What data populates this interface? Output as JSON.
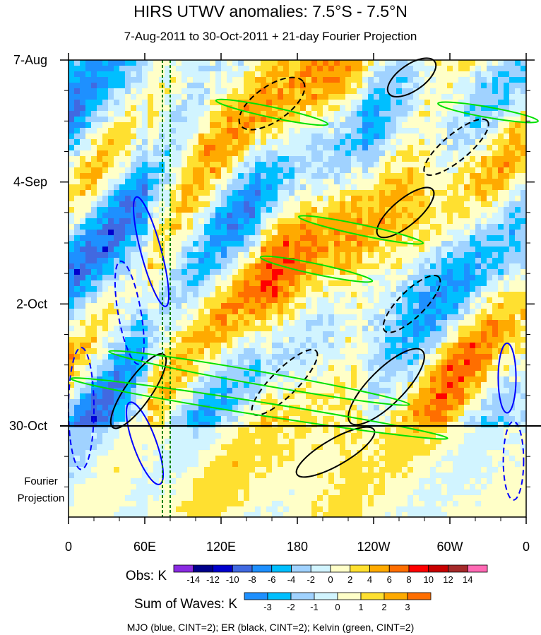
{
  "chart_data": {
    "type": "heatmap",
    "title": "HIRS UTWV anomalies: 7.5°S - 7.5°N",
    "subtitle": "7-Aug-2011 to 30-Oct-2011 + 21-day Fourier Projection",
    "xlabel": "",
    "ylabel": "",
    "x_ticks": [
      {
        "lon": 0,
        "label": "0"
      },
      {
        "lon": 60,
        "label": "60E"
      },
      {
        "lon": 120,
        "label": "120E"
      },
      {
        "lon": 180,
        "label": "180"
      },
      {
        "lon": 240,
        "label": "120W"
      },
      {
        "lon": 300,
        "label": "60W"
      },
      {
        "lon": 360,
        "label": "0"
      }
    ],
    "y_ticks": [
      {
        "day": 0,
        "label": "7-Aug"
      },
      {
        "day": 28,
        "label": "4-Sep"
      },
      {
        "day": 56,
        "label": "2-Oct"
      },
      {
        "day": 84,
        "label": "30-Oct"
      }
    ],
    "projection_days": 21,
    "projection_label": [
      "Fourier",
      "Projection"
    ],
    "xlim": [
      0,
      360
    ],
    "ylim_days": [
      0,
      105
    ],
    "obs_colorbar": {
      "label": "Obs: K",
      "levels": [
        "-14",
        "-12",
        "-10",
        "-8",
        "-6",
        "-4",
        "-2",
        "0",
        "2",
        "4",
        "6",
        "8",
        "10",
        "12",
        "14"
      ],
      "colors": [
        "#8a2be2",
        "#00008b",
        "#0000cd",
        "#4169e1",
        "#1e90ff",
        "#00bfff",
        "#a0d2ff",
        "#d1f4ff",
        "#ffffc8",
        "#ffe030",
        "#ffaa00",
        "#ff6e00",
        "#ff0000",
        "#c80000",
        "#a52a2a",
        "#ff69b4"
      ]
    },
    "waves_colorbar": {
      "label": "Sum of Waves: K",
      "levels": [
        "-3",
        "-2",
        "-1",
        "0",
        "1",
        "2",
        "3"
      ],
      "colors": [
        "#1e90ff",
        "#00bfff",
        "#a0d2ff",
        "#d1f4ff",
        "#ffffc8",
        "#ffe030",
        "#ffaa00",
        "#ff6e00"
      ]
    },
    "contour_legend": "MJO (blue, CINT=2); ER (black, CINT=2); Kelvin (green, CINT=2)",
    "contours": [
      {
        "wave": "MJO",
        "color": "#0000ff",
        "dashed": false,
        "lon": 65,
        "day": 44,
        "rlon": 8,
        "rday": 13,
        "tilt": -15
      },
      {
        "wave": "MJO",
        "color": "#0000ff",
        "dashed": true,
        "lon": 48,
        "day": 58,
        "rlon": 9,
        "rday": 12,
        "tilt": -10
      },
      {
        "wave": "MJO",
        "color": "#0000ff",
        "dashed": false,
        "lon": 60,
        "day": 88,
        "rlon": 9,
        "rday": 10,
        "tilt": -20
      },
      {
        "wave": "MJO",
        "color": "#0000ff",
        "dashed": true,
        "lon": 10,
        "day": 80,
        "rlon": 10,
        "rday": 14,
        "tilt": 0
      },
      {
        "wave": "MJO",
        "color": "#0000ff",
        "dashed": false,
        "lon": 345,
        "day": 73,
        "rlon": 7,
        "rday": 8,
        "tilt": 0
      },
      {
        "wave": "MJO",
        "color": "#0000ff",
        "dashed": true,
        "lon": 350,
        "day": 92,
        "rlon": 8,
        "rday": 9,
        "tilt": 0
      },
      {
        "wave": "ER",
        "color": "#000000",
        "dashed": true,
        "lon": 160,
        "day": 10,
        "rlon": 30,
        "rday": 4,
        "tilt": -35
      },
      {
        "wave": "ER",
        "color": "#000000",
        "dashed": false,
        "lon": 270,
        "day": 4,
        "rlon": 22,
        "rday": 3,
        "tilt": -35
      },
      {
        "wave": "ER",
        "color": "#000000",
        "dashed": false,
        "lon": 265,
        "day": 35,
        "rlon": 28,
        "rday": 3,
        "tilt": -40
      },
      {
        "wave": "ER",
        "color": "#000000",
        "dashed": true,
        "lon": 305,
        "day": 20,
        "rlon": 32,
        "rday": 3,
        "tilt": -40
      },
      {
        "wave": "ER",
        "color": "#000000",
        "dashed": true,
        "lon": 170,
        "day": 74,
        "rlon": 35,
        "rday": 3,
        "tilt": -45
      },
      {
        "wave": "ER",
        "color": "#000000",
        "dashed": false,
        "lon": 250,
        "day": 75,
        "rlon": 40,
        "rday": 4,
        "tilt": -45
      },
      {
        "wave": "ER",
        "color": "#000000",
        "dashed": true,
        "lon": 270,
        "day": 56,
        "rlon": 30,
        "rday": 3,
        "tilt": -45
      },
      {
        "wave": "ER",
        "color": "#000000",
        "dashed": false,
        "lon": 210,
        "day": 90,
        "rlon": 35,
        "rday": 3,
        "tilt": -30
      },
      {
        "wave": "ER",
        "color": "#000000",
        "dashed": false,
        "lon": 55,
        "day": 76,
        "rlon": 35,
        "rday": 3,
        "tilt": -55
      },
      {
        "wave": "Kelvin",
        "color": "#00e000",
        "dashed": false,
        "lon": 160,
        "day": 12,
        "rlon": 45,
        "rday": 1.2,
        "tilt": 12
      },
      {
        "wave": "Kelvin",
        "color": "#00e000",
        "dashed": false,
        "lon": 230,
        "day": 39,
        "rlon": 50,
        "rday": 1.2,
        "tilt": 12
      },
      {
        "wave": "Kelvin",
        "color": "#00e000",
        "dashed": false,
        "lon": 195,
        "day": 48,
        "rlon": 45,
        "rday": 1.2,
        "tilt": 12
      },
      {
        "wave": "Kelvin",
        "color": "#00e000",
        "dashed": false,
        "lon": 150,
        "day": 73,
        "rlon": 120,
        "rday": 1.5,
        "tilt": 10
      },
      {
        "wave": "Kelvin",
        "color": "#00e000",
        "dashed": false,
        "lon": 150,
        "day": 80,
        "rlon": 150,
        "rday": 1.5,
        "tilt": 9
      },
      {
        "wave": "Kelvin",
        "color": "#00e000",
        "dashed": false,
        "lon": 330,
        "day": 12,
        "rlon": 40,
        "rday": 1.2,
        "tilt": 10
      }
    ]
  }
}
